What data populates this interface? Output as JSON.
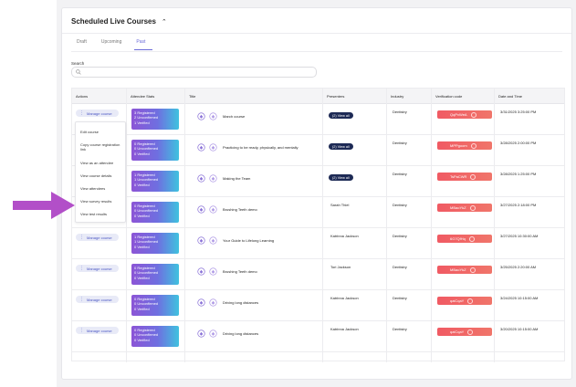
{
  "header": {
    "title": "Scheduled Live Courses"
  },
  "tabs": [
    {
      "label": "Draft"
    },
    {
      "label": "Upcoming"
    },
    {
      "label": "Past"
    }
  ],
  "search": {
    "label": "Search",
    "placeholder": ""
  },
  "table": {
    "columns": [
      "Actions",
      "Attendee Stats",
      "Title",
      "Presenters",
      "Industry",
      "Verification code",
      "Date and Time"
    ],
    "manage_label": "Manage course",
    "rows": [
      {
        "stats": [
          "3 Registered",
          "2 Unconfirmed",
          "1 Verified"
        ],
        "title": "March course",
        "presenters": "(2) View all",
        "industry": "Dentistry",
        "code": "QqPvWeA",
        "date": "3/31/2025 3:25:00 PM"
      },
      {
        "stats": [
          "0 Registered",
          "0 Unconfirmed",
          "0 Verified"
        ],
        "title": "Practicing to be ready, physically, and mentally",
        "presenters": "(2) View all",
        "industry": "Dentistry",
        "code": "MPPgoom",
        "date": "3/28/2025 2:00:00 PM"
      },
      {
        "stats": [
          "1 Registered",
          "1 Unconfirmed",
          "0 Verified"
        ],
        "title": "Making the Team",
        "presenters": "(2) View all",
        "industry": "Dentistry",
        "code": "TsPaCWR",
        "date": "3/28/2025 1:25:00 PM"
      },
      {
        "stats": [
          "0 Registered",
          "0 Unconfirmed",
          "0 Verified"
        ],
        "title": "Brushing Teeth demo",
        "presenters": "Sarah Thiel",
        "industry": "Dentistry",
        "code": "MBaoYkZ",
        "date": "3/27/2025 2:18:00 PM"
      },
      {
        "stats": [
          "1 Registered",
          "1 Unconfirmed",
          "0 Verified"
        ],
        "title": "Your Guide to Lifelong Learning",
        "presenters": "Katrinna Jackson",
        "industry": "Dentistry",
        "code": "6G7QfHq",
        "date": "3/27/2025 10:30:00 AM"
      },
      {
        "stats": [
          "0 Registered",
          "0 Unconfirmed",
          "0 Verified"
        ],
        "title": "Brushing Teeth demo",
        "presenters": "Tori Jackson",
        "industry": "Dentistry",
        "code": "MBaoYkZ",
        "date": "3/25/2025 2:20:00 AM"
      },
      {
        "stats": [
          "0 Registered",
          "0 Unconfirmed",
          "0 Verified"
        ],
        "title": "Driving long distances",
        "presenters": "Katrinna Jackson",
        "industry": "Dentistry",
        "code": "qaiCqaY",
        "date": "3/24/2025 10:15:00 AM"
      },
      {
        "stats": [
          "0 Registered",
          "0 Unconfirmed",
          "0 Verified"
        ],
        "title": "Driving long distances",
        "presenters": "Katrinna Jackson",
        "industry": "Dentistry",
        "code": "qaiCqaY",
        "date": "3/20/2025 10:15:00 AM"
      }
    ]
  },
  "menu": {
    "items": [
      "Edit course",
      "Copy course registration link",
      "View as an attendee",
      "View course details",
      "View attendees",
      "View survey results",
      "View test results"
    ]
  },
  "colors": {
    "accent": "#6c6cd8",
    "arrow": "#b24fc8",
    "code_bg": "#f05a63",
    "presenter_pill": "#1d2a55"
  }
}
